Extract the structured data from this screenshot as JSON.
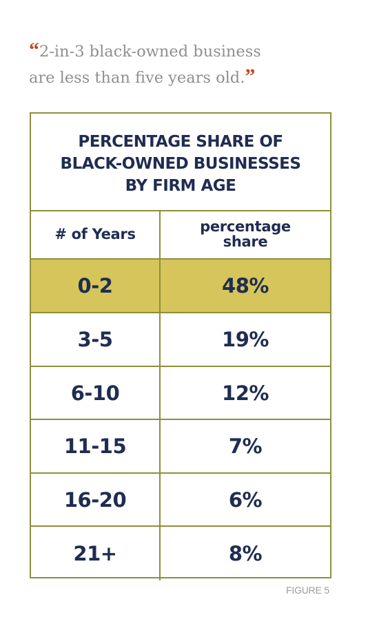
{
  "quote": {
    "open_mark": "“",
    "line1": "2-in-3 black-owned business",
    "line2": "are less than five years old.",
    "close_mark": "”"
  },
  "colors": {
    "border": "#8c8f3a",
    "highlight": "#d6c55a",
    "text": "#1f2d52",
    "quote_mark": "#c8451e",
    "quote_text": "#8f8f8f"
  },
  "chart_data": {
    "type": "table",
    "title": "PERCENTAGE SHARE OF BLACK-OWNED BUSINESSES BY FIRM AGE",
    "columns": [
      "# of Years",
      "percentage share"
    ],
    "categories": [
      "0-2",
      "3-5",
      "6-10",
      "11-15",
      "16-20",
      "21+"
    ],
    "values": [
      48,
      19,
      12,
      7,
      6,
      8
    ],
    "value_labels": [
      "48%",
      "19%",
      "12%",
      "7%",
      "6%",
      "8%"
    ],
    "highlighted_category": "0-2"
  },
  "figure_label": "FIGURE 5"
}
